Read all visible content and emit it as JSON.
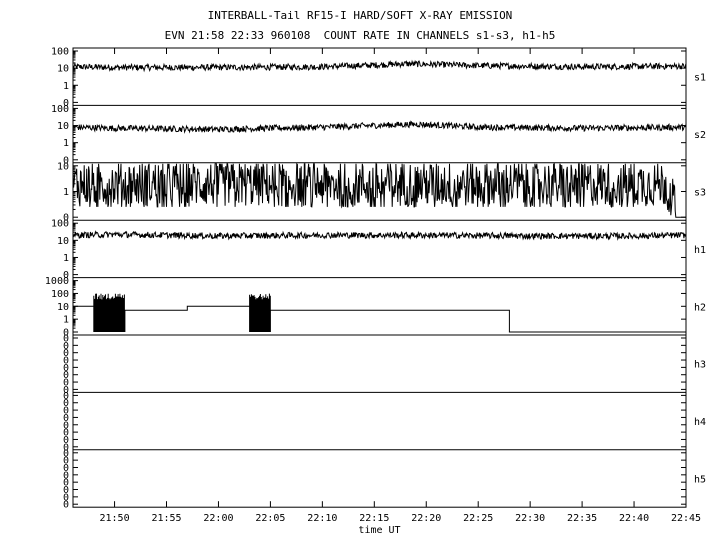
{
  "header": {
    "title": "INTERBALL-Tail RF15-I HARD/SOFT X-RAY EMISSION",
    "subtitle": "EVN 21:58 22:33 960108  COUNT RATE IN CHANNELS s1-s3, h1-h5"
  },
  "chart_data": {
    "type": "line",
    "title": "INTERBALL-Tail RF15-I HARD/SOFT X-RAY EMISSION",
    "subtitle": "EVN 21:58 22:33 960108  COUNT RATE IN CHANNELS s1-s3, h1-h5",
    "xlabel": "time UT",
    "x_range": [
      "21:46",
      "22:45"
    ],
    "x_ticks": [
      "21:50",
      "21:55",
      "22:00",
      "22:05",
      "22:10",
      "22:15",
      "22:20",
      "22:25",
      "22:30",
      "22:35",
      "22:40",
      "22:45"
    ],
    "y_scale": "log",
    "grid": false,
    "panels": [
      {
        "name": "s1",
        "y_ticks": [
          "100",
          "10",
          "1",
          "0"
        ],
        "series": [
          {
            "x": [
              "21:46",
              "21:50",
              "22:00",
              "22:10",
              "22:15",
              "22:18",
              "22:25",
              "22:35",
              "22:45"
            ],
            "y": [
              12,
              11,
              11,
              12,
              15,
              18,
              14,
              12,
              13
            ]
          }
        ]
      },
      {
        "name": "s2",
        "y_ticks": [
          "100",
          "10",
          "1",
          "0"
        ],
        "series": [
          {
            "x": [
              "21:46",
              "21:50",
              "22:00",
              "22:10",
              "22:15",
              "22:19",
              "22:25",
              "22:35",
              "22:45"
            ],
            "y": [
              8,
              7,
              6,
              8,
              10,
              12,
              8,
              7,
              8
            ]
          }
        ]
      },
      {
        "name": "s3",
        "y_ticks": [
          "10",
          "1",
          "0"
        ],
        "series": [
          {
            "x": [
              "21:46",
              "21:55",
              "22:05",
              "22:15",
              "22:25",
              "22:35",
              "22:43",
              "22:44"
            ],
            "y": [
              2,
              2,
              2,
              2,
              2,
              2,
              2,
              0
            ]
          }
        ]
      },
      {
        "name": "h1",
        "y_ticks": [
          "100",
          "10",
          "1",
          "0"
        ],
        "series": [
          {
            "x": [
              "21:46",
              "21:50",
              "22:00",
              "22:10",
              "22:20",
              "22:30",
              "22:40",
              "22:45"
            ],
            "y": [
              20,
              22,
              18,
              20,
              20,
              18,
              18,
              20
            ]
          }
        ]
      },
      {
        "name": "h2",
        "y_ticks": [
          "1000",
          "100",
          "10",
          "1",
          "0"
        ],
        "series": [
          {
            "steps": [
              {
                "from": "21:46",
                "to": "21:48",
                "value": 10
              },
              {
                "from": "21:48",
                "to": "21:51",
                "value": "burst",
                "range": [
                  0,
                  100
                ]
              },
              {
                "from": "21:51",
                "to": "21:57",
                "value": 5
              },
              {
                "from": "21:57",
                "to": "22:03",
                "value": 10
              },
              {
                "from": "22:03",
                "to": "22:05",
                "value": "burst",
                "range": [
                  0,
                  100
                ]
              },
              {
                "from": "22:05",
                "to": "22:28",
                "value": 5
              },
              {
                "from": "22:28",
                "to": "22:45",
                "value": 0
              }
            ]
          }
        ]
      },
      {
        "name": "h3",
        "y_ticks": [
          "0",
          "0",
          "0",
          "0",
          "0",
          "0",
          "0",
          "0"
        ],
        "series": []
      },
      {
        "name": "h4",
        "y_ticks": [
          "0",
          "0",
          "0",
          "0",
          "0",
          "0",
          "0",
          "0"
        ],
        "series": []
      },
      {
        "name": "h5",
        "y_ticks": [
          "0",
          "0",
          "0",
          "0",
          "0",
          "0",
          "0",
          "0"
        ],
        "series": []
      }
    ]
  }
}
